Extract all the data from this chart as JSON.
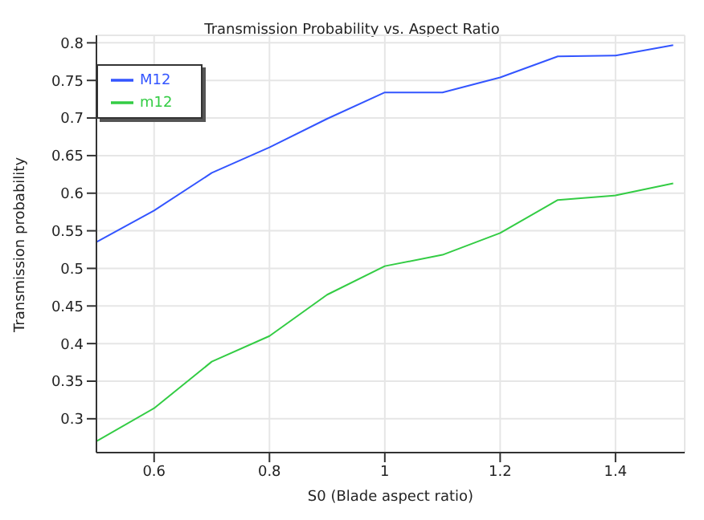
{
  "chart_data": {
    "type": "line",
    "title": "Transmission Probability vs. Aspect Ratio",
    "xlabel": "S0 (Blade aspect ratio)",
    "ylabel": "Transmission probability",
    "x": [
      0.5,
      0.6,
      0.7,
      0.8,
      0.9,
      1.0,
      1.1,
      1.2,
      1.3,
      1.4,
      1.5
    ],
    "series": [
      {
        "name": "M12",
        "color": "#3355ff",
        "values": [
          0.535,
          0.577,
          0.627,
          0.661,
          0.699,
          0.734,
          0.734,
          0.754,
          0.782,
          0.783,
          0.797
        ]
      },
      {
        "name": "m12",
        "color": "#33cc44",
        "values": [
          0.27,
          0.314,
          0.376,
          0.41,
          0.465,
          0.503,
          0.518,
          0.547,
          0.591,
          0.597,
          0.613
        ]
      }
    ],
    "xlim": [
      0.5,
      1.52
    ],
    "xticks": [
      0.6,
      0.8,
      1,
      1.2,
      1.4
    ],
    "ylim": [
      0.255,
      0.81
    ],
    "yticks": [
      0.3,
      0.35,
      0.4,
      0.45,
      0.5,
      0.55,
      0.6,
      0.65,
      0.7,
      0.75,
      0.8
    ],
    "grid": true,
    "legend": "top left",
    "marker": "none",
    "line_style": "solid"
  }
}
